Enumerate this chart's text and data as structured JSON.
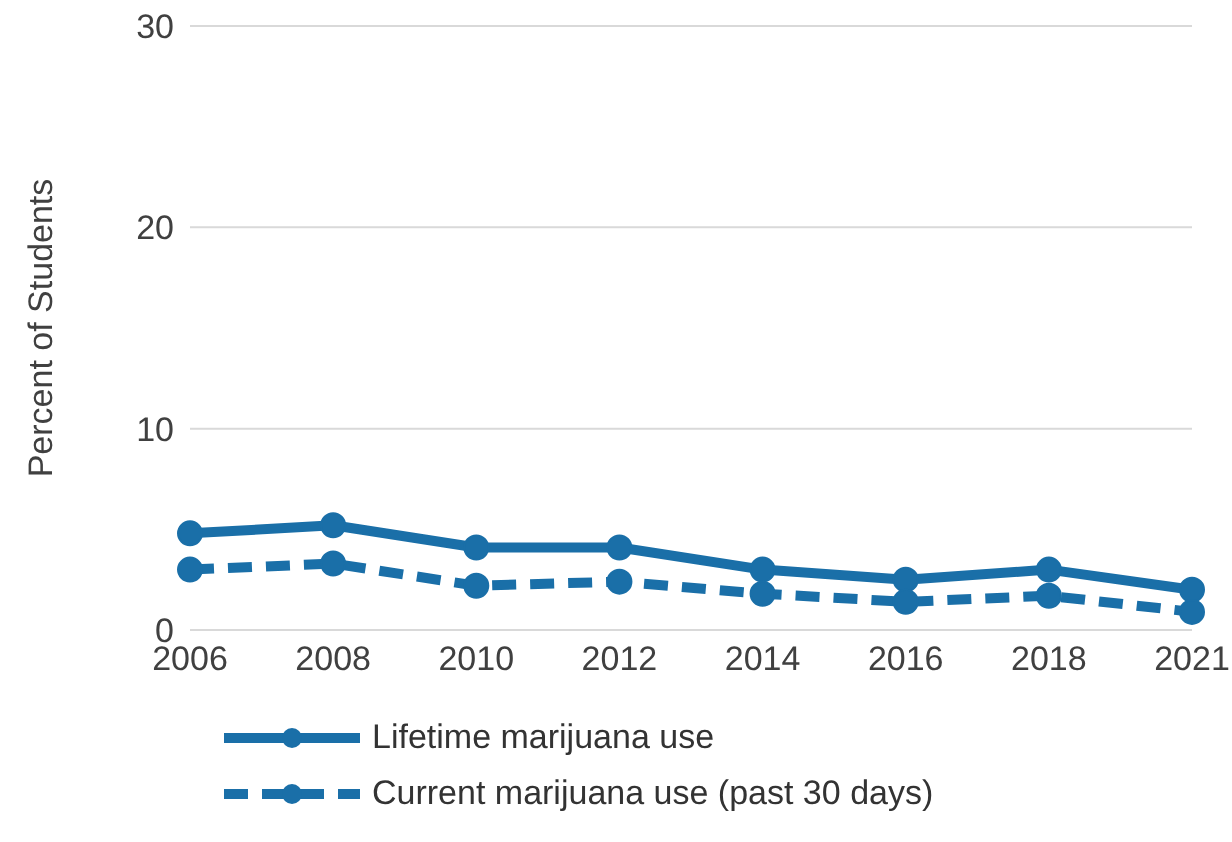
{
  "chart_data": {
    "type": "line",
    "ylabel": "Percent of Students",
    "categories": [
      "2006",
      "2008",
      "2010",
      "2012",
      "2014",
      "2016",
      "2018",
      "2021"
    ],
    "series": [
      {
        "name": "Lifetime marijuana use",
        "color": "#1a6fa8",
        "line_style": "solid",
        "values": [
          4.8,
          5.2,
          4.1,
          4.1,
          3.0,
          2.5,
          3.0,
          2.0
        ]
      },
      {
        "name": "Current marijuana use (past 30 days)",
        "color": "#1a6fa8",
        "line_style": "dashed",
        "values": [
          3.0,
          3.3,
          2.2,
          2.4,
          1.8,
          1.4,
          1.7,
          0.9
        ]
      }
    ],
    "ylim": [
      0,
      30
    ],
    "yticks": [
      0,
      10,
      20,
      30
    ],
    "grid": "y",
    "legend": "bottom left",
    "marker": "circle"
  }
}
